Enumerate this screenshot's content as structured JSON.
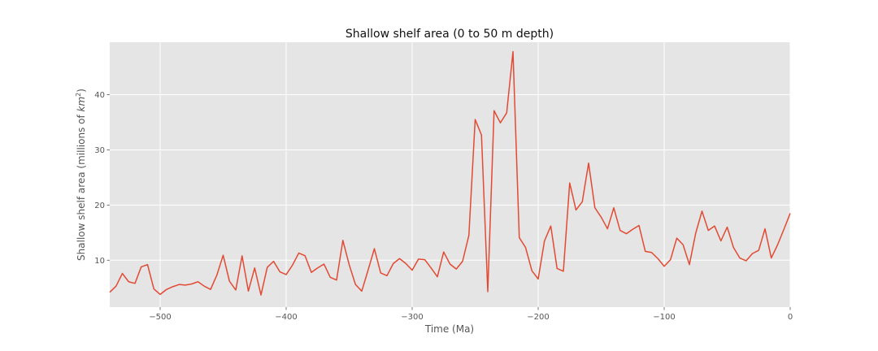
{
  "chart_data": {
    "type": "line",
    "title": "Shallow shelf area (0 to 50 m depth)",
    "xlabel": "Time (Ma)",
    "ylabel": "Shallow shelf area (millions of ",
    "ylabel_unit": "km",
    "ylabel_unit_exp": "2",
    "ylabel_close": ")",
    "xlim": [
      -540,
      0
    ],
    "ylim": [
      1.5,
      49.5
    ],
    "xticks": [
      -500,
      -400,
      -300,
      -200,
      -100,
      0
    ],
    "xtick_labels": [
      "−500",
      "−400",
      "−300",
      "−200",
      "−100",
      "0"
    ],
    "yticks": [
      10,
      20,
      30,
      40
    ],
    "ytick_labels": [
      "10",
      "20",
      "30",
      "40"
    ],
    "grid": true,
    "background": "#e5e5e5",
    "grid_color": "#ffffff",
    "line_color": "#e24a33",
    "series": [
      {
        "x": [
          -540,
          -535,
          -530,
          -525,
          -520,
          -515,
          -510,
          -505,
          -500,
          -495,
          -490,
          -485,
          -480,
          -475,
          -470,
          -465,
          -460,
          -455,
          -450,
          -445,
          -440,
          -435,
          -430,
          -425,
          -420,
          -415,
          -410,
          -405,
          -400,
          -395,
          -390,
          -385,
          -380,
          -375,
          -370,
          -365,
          -360,
          -355,
          -350,
          -345,
          -340,
          -335,
          -330,
          -325,
          -320,
          -315,
          -310,
          -305,
          -300,
          -295,
          -290,
          -285,
          -280,
          -275,
          -270,
          -265,
          -260,
          -255,
          -250,
          -245,
          -240,
          -235,
          -230,
          -225,
          -220,
          -215,
          -210,
          -205,
          -200,
          -195,
          -190,
          -185,
          -180,
          -175,
          -170,
          -165,
          -160,
          -155,
          -150,
          -145,
          -140,
          -135,
          -130,
          -125,
          -120,
          -115,
          -110,
          -105,
          -100,
          -95,
          -90,
          -85,
          -80,
          -75,
          -70,
          -65,
          -60,
          -55,
          -50,
          -45,
          -40,
          -35,
          -30,
          -25,
          -20,
          -15,
          -10,
          -5,
          0
        ],
        "y": [
          4.2,
          5.3,
          7.6,
          6.1,
          5.8,
          8.8,
          9.2,
          4.8,
          3.8,
          4.7,
          5.2,
          5.6,
          5.5,
          5.7,
          6.1,
          5.3,
          4.7,
          7.3,
          10.9,
          6.2,
          4.6,
          10.8,
          4.4,
          8.6,
          3.7,
          8.7,
          9.8,
          7.9,
          7.4,
          9.1,
          11.3,
          10.8,
          7.8,
          8.6,
          9.3,
          6.9,
          6.4,
          13.6,
          9.2,
          5.6,
          4.4,
          8.2,
          12.1,
          7.7,
          7.2,
          9.4,
          10.3,
          9.4,
          8.2,
          10.2,
          10.1,
          8.6,
          7.0,
          11.5,
          9.3,
          8.4,
          9.8,
          14.5,
          35.5,
          32.7,
          4.3,
          37.1,
          34.9,
          36.7,
          47.8,
          14.1,
          12.3,
          8.1,
          6.6,
          13.5,
          16.2,
          8.5,
          8.0,
          24.0,
          19.1,
          20.6,
          27.6,
          19.5,
          17.8,
          15.7,
          19.5,
          15.4,
          14.8,
          15.6,
          16.3,
          11.6,
          11.4,
          10.3,
          8.9,
          10.1,
          14.0,
          12.8,
          9.2,
          14.9,
          18.9,
          15.4,
          16.2,
          13.5,
          16.0,
          12.3,
          10.4,
          9.9,
          11.2,
          11.8,
          15.7,
          10.4,
          12.8,
          15.6,
          18.5
        ]
      }
    ]
  }
}
